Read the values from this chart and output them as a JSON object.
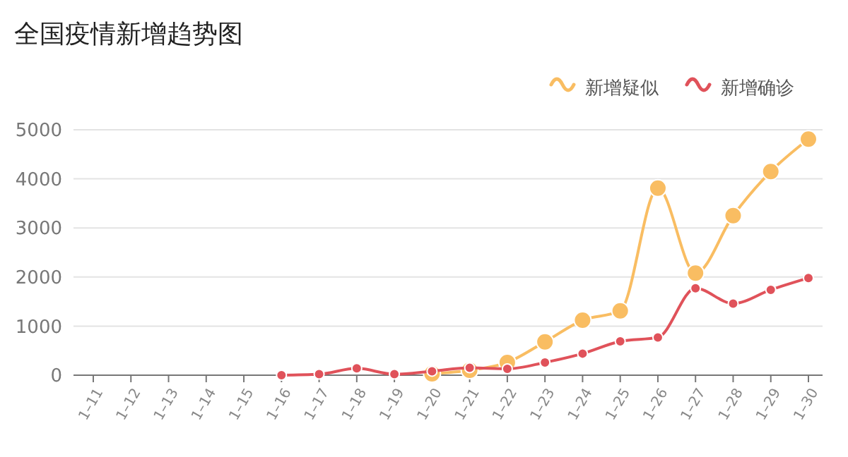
{
  "chart_data": {
    "type": "line",
    "title": "全国疫情新增趋势图",
    "categories": [
      "1–11",
      "1–12",
      "1–13",
      "1–14",
      "1–15",
      "1–16",
      "1–17",
      "1–18",
      "1–19",
      "1–20",
      "1–21",
      "1–22",
      "1–23",
      "1–24",
      "1–25",
      "1–26",
      "1–27",
      "1–28",
      "1–29",
      "1–30"
    ],
    "series": [
      {
        "name": "新增疑似",
        "color": "#f9bd62",
        "values": [
          null,
          null,
          null,
          null,
          null,
          null,
          null,
          null,
          null,
          30,
          100,
          260,
          680,
          1120,
          1310,
          3810,
          2080,
          3250,
          4150,
          4810
        ]
      },
      {
        "name": "新增确诊",
        "color": "#e0525a",
        "values": [
          null,
          null,
          null,
          null,
          null,
          0,
          20,
          140,
          20,
          80,
          150,
          130,
          260,
          440,
          690,
          770,
          1770,
          1460,
          1740,
          1980
        ]
      }
    ],
    "ylim": [
      0,
      5000
    ],
    "yticks": [
      0,
      1000,
      2000,
      3000,
      4000,
      5000
    ],
    "grid": "y",
    "legend": "top right",
    "marker": "circle",
    "line_style": "solid"
  }
}
